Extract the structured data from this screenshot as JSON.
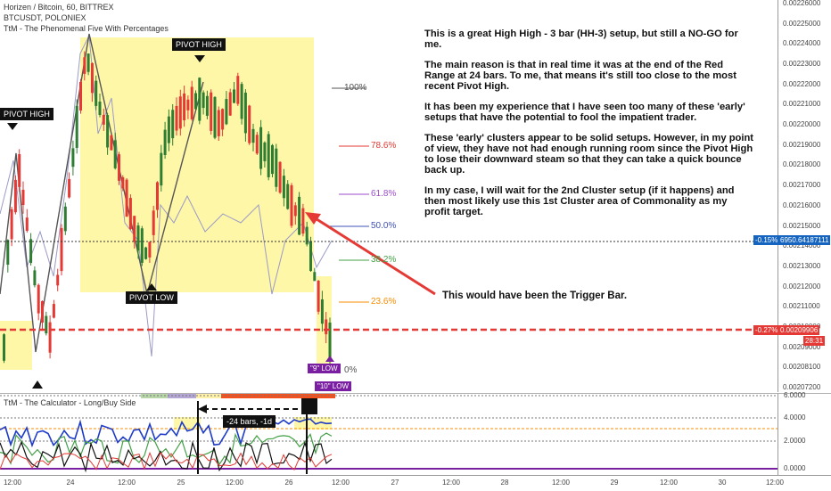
{
  "legend": {
    "symbol_line": "Horizen / Bitcoin, 60, BITTREX",
    "compare_line": "BTCUSDT, POLONIEX",
    "indicator_line": "TtM - The Phenomenal Five With Percentages"
  },
  "sub_legend": "TtM - The Calculator - Long/Buy Side",
  "annotation_paragraphs": [
    "This is a great High High - 3 bar (HH-3) setup, but still a NO-GO for me.",
    "The main reason is that in real time it was at the end of the Red Range at 24 bars. To me, that means it's still too close to the most recent Pivot High.",
    "It has been my experience that I have seen too many of these 'early' setups that have the potential to fool the impatient trader.",
    "These 'early' clusters appear to be solid setups. However, in my point of view, they have not had enough running room since the Pivot High to lose their downward steam so that they can take a quick bounce back up.",
    "In my case, I will wait for the 2nd Cluster setup (if it happens) and then most likely use this 1st Cluster area of Commonality as my profit target."
  ],
  "trigger_note": "This would have been the Trigger Bar.",
  "pivots": {
    "pivot_high_main": "PIVOT HIGH",
    "pivot_high_left": "PIVOT HIGH",
    "pivot_low": "PIVOT LOW",
    "low_9": "\"9\" LOW",
    "low_10": "\"10\" LOW"
  },
  "fib_labels": [
    "100%",
    "78.6%",
    "61.8%",
    "50.0%",
    "38.2%",
    "23.6%",
    "0%"
  ],
  "price_axis_labels": [
    "0.00226000",
    "0.00225000",
    "0.00224000",
    "0.00223000",
    "0.00222000",
    "0.00221000",
    "0.00220000",
    "0.00219000",
    "0.00218000",
    "0.00217000",
    "0.00216000",
    "0.00215000",
    "0.00214000",
    "0.00213000",
    "0.00212000",
    "0.00211000",
    "0.00210000",
    "0.00209000",
    "0.00208100",
    "0.00207200"
  ],
  "price_tags": {
    "btc_pct": "-0.15%",
    "btc_price": "6950.64187111",
    "last_pct": "-0.27%",
    "last_price": "0.00209906",
    "countdown": "28:31"
  },
  "osc_axis_labels": [
    "6.0000",
    "4.0000",
    "2.0000",
    "0.0000"
  ],
  "bars_label": "-24 bars, -1d",
  "time_axis_labels": [
    "12:00",
    "24",
    "12:00",
    "25",
    "12:00",
    "26",
    "12:00",
    "27",
    "12:00",
    "28",
    "12:00",
    "29",
    "12:00",
    "30",
    "12:00"
  ],
  "colors": {
    "up_candle": "#2e7d32",
    "down_candle": "#e53935",
    "range_box": "#fff7a8",
    "dotted_level": "#e53935",
    "compare_line": "#9a9ac8"
  }
}
